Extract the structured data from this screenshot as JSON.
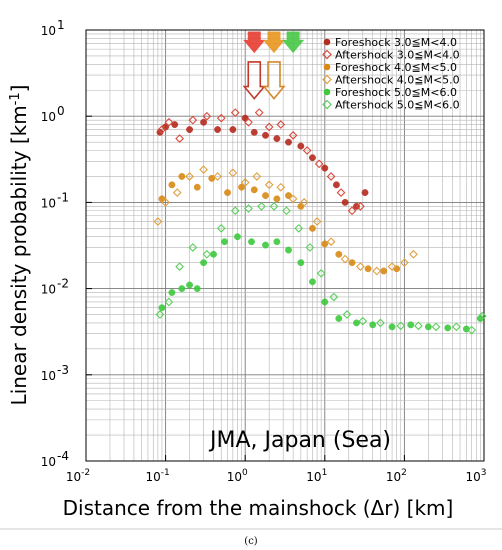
{
  "chart_data": {
    "type": "scatter",
    "xscale": "log",
    "yscale": "log",
    "xlim": [
      0.01,
      1000
    ],
    "ylim": [
      0.0001,
      10
    ],
    "grid": true,
    "legend_position": "top-right",
    "xlabel": "Distance from the mainshock (Δr) [km]",
    "ylabel": "Linear density probability [km",
    "ylabel_sup": "-1",
    "ylabel_end": "]",
    "annotation": "JMA, Japan (Sea)",
    "caption": "(c)",
    "x_tick_labels": [
      {
        "base": "10",
        "exp": "-2",
        "value": 0.01
      },
      {
        "base": "10",
        "exp": "-1",
        "value": 0.1
      },
      {
        "base": "10",
        "exp": "0",
        "value": 1
      },
      {
        "base": "10",
        "exp": "1",
        "value": 10
      },
      {
        "base": "10",
        "exp": "2",
        "value": 100
      },
      {
        "base": "10",
        "exp": "3",
        "value": 1000
      }
    ],
    "y_tick_labels": [
      {
        "base": "10",
        "exp": "-4",
        "value": 0.0001
      },
      {
        "base": "10",
        "exp": "-3",
        "value": 0.001
      },
      {
        "base": "10",
        "exp": "-2",
        "value": 0.01
      },
      {
        "base": "10",
        "exp": "-1",
        "value": 0.1
      },
      {
        "base": "10",
        "exp": "0",
        "value": 1
      },
      {
        "base": "10",
        "exp": "1",
        "value": 10
      }
    ],
    "series": [
      {
        "name": "Foreshock 3.0≦M<4.0",
        "marker": "filled-circle",
        "color": "#b52a1e",
        "points": [
          [
            0.085,
            0.65
          ],
          [
            0.1,
            0.75
          ],
          [
            0.13,
            0.8
          ],
          [
            0.2,
            0.7
          ],
          [
            0.3,
            0.85
          ],
          [
            0.45,
            0.7
          ],
          [
            0.7,
            0.7
          ],
          [
            1,
            0.95
          ],
          [
            1.3,
            0.65
          ],
          [
            1.8,
            0.6
          ],
          [
            2.5,
            0.55
          ],
          [
            3.5,
            0.5
          ],
          [
            5,
            0.45
          ],
          [
            7,
            0.33
          ],
          [
            10,
            0.25
          ],
          [
            14,
            0.16
          ],
          [
            18,
            0.1
          ],
          [
            25,
            0.09
          ],
          [
            32,
            0.13
          ]
        ]
      },
      {
        "name": "Aftershock 3.0≦M<4.0",
        "marker": "open-diamond",
        "color": "#d94a3c",
        "points": [
          [
            0.09,
            0.7
          ],
          [
            0.11,
            0.85
          ],
          [
            0.15,
            0.55
          ],
          [
            0.22,
            0.9
          ],
          [
            0.33,
            1.0
          ],
          [
            0.5,
            0.95
          ],
          [
            0.75,
            1.1
          ],
          [
            1.1,
            0.85
          ],
          [
            1.5,
            1.1
          ],
          [
            2,
            0.75
          ],
          [
            2.8,
            0.8
          ],
          [
            4,
            0.6
          ],
          [
            6,
            0.4
          ],
          [
            8.5,
            0.28
          ],
          [
            12,
            0.2
          ],
          [
            16,
            0.13
          ],
          [
            22,
            0.08
          ],
          [
            28,
            0.09
          ]
        ]
      },
      {
        "name": "Foreshock 4.0≦M<5.0",
        "marker": "filled-circle",
        "color": "#d98a15",
        "points": [
          [
            0.09,
            0.11
          ],
          [
            0.12,
            0.16
          ],
          [
            0.16,
            0.2
          ],
          [
            0.25,
            0.15
          ],
          [
            0.38,
            0.19
          ],
          [
            0.6,
            0.13
          ],
          [
            0.9,
            0.15
          ],
          [
            1.3,
            0.14
          ],
          [
            1.8,
            0.12
          ],
          [
            2.5,
            0.11
          ],
          [
            3.5,
            0.12
          ],
          [
            5,
            0.09
          ],
          [
            7,
            0.05
          ],
          [
            10,
            0.033
          ],
          [
            15,
            0.025
          ],
          [
            22,
            0.02
          ],
          [
            35,
            0.017
          ],
          [
            55,
            0.016
          ],
          [
            80,
            0.017
          ]
        ]
      },
      {
        "name": "Aftershock 4.0≦M<5.0",
        "marker": "open-diamond",
        "color": "#e0a040",
        "points": [
          [
            0.08,
            0.06
          ],
          [
            0.1,
            0.1
          ],
          [
            0.14,
            0.13
          ],
          [
            0.2,
            0.2
          ],
          [
            0.3,
            0.24
          ],
          [
            0.45,
            0.2
          ],
          [
            0.7,
            0.22
          ],
          [
            1,
            0.17
          ],
          [
            1.4,
            0.2
          ],
          [
            2,
            0.16
          ],
          [
            2.8,
            0.15
          ],
          [
            4,
            0.11
          ],
          [
            5.5,
            0.1
          ],
          [
            8,
            0.06
          ],
          [
            12,
            0.035
          ],
          [
            18,
            0.022
          ],
          [
            28,
            0.018
          ],
          [
            45,
            0.016
          ],
          [
            70,
            0.018
          ],
          [
            100,
            0.02
          ],
          [
            130,
            0.025
          ]
        ]
      },
      {
        "name": "Foreshock 5.0≦M<6.0",
        "marker": "filled-circle",
        "color": "#3ec93e",
        "points": [
          [
            0.09,
            0.006
          ],
          [
            0.12,
            0.009
          ],
          [
            0.16,
            0.01
          ],
          [
            0.2,
            0.011
          ],
          [
            0.25,
            0.01
          ],
          [
            0.3,
            0.02
          ],
          [
            0.4,
            0.025
          ],
          [
            0.55,
            0.035
          ],
          [
            0.8,
            0.04
          ],
          [
            1.2,
            0.035
          ],
          [
            1.8,
            0.032
          ],
          [
            2.5,
            0.035
          ],
          [
            3.5,
            0.028
          ],
          [
            5,
            0.02
          ],
          [
            7,
            0.012
          ],
          [
            10,
            0.007
          ],
          [
            15,
            0.0045
          ],
          [
            25,
            0.004
          ],
          [
            40,
            0.0038
          ],
          [
            70,
            0.0036
          ],
          [
            120,
            0.0038
          ],
          [
            200,
            0.0036
          ],
          [
            350,
            0.0035
          ],
          [
            600,
            0.0034
          ],
          [
            900,
            0.0045
          ]
        ]
      },
      {
        "name": "Aftershock 5.0≦M<6.0",
        "marker": "open-diamond",
        "color": "#5ad05a",
        "points": [
          [
            0.085,
            0.005
          ],
          [
            0.11,
            0.007
          ],
          [
            0.15,
            0.018
          ],
          [
            0.22,
            0.03
          ],
          [
            0.33,
            0.025
          ],
          [
            0.5,
            0.05
          ],
          [
            0.75,
            0.08
          ],
          [
            1.1,
            0.085
          ],
          [
            1.6,
            0.09
          ],
          [
            2.3,
            0.09
          ],
          [
            3.3,
            0.08
          ],
          [
            4.7,
            0.05
          ],
          [
            6.5,
            0.03
          ],
          [
            9,
            0.015
          ],
          [
            13,
            0.008
          ],
          [
            19,
            0.005
          ],
          [
            30,
            0.0042
          ],
          [
            50,
            0.004
          ],
          [
            90,
            0.0037
          ],
          [
            150,
            0.0037
          ],
          [
            250,
            0.0036
          ],
          [
            450,
            0.0036
          ],
          [
            700,
            0.0033
          ],
          [
            950,
            0.0048
          ]
        ]
      }
    ],
    "arrows": [
      {
        "kind": "filled",
        "color": "#e83c32",
        "x": 1.3,
        "y_top": 10,
        "y_bottom": 5.5
      },
      {
        "kind": "filled",
        "color": "#e8961e",
        "x": 2.3,
        "y_top": 10,
        "y_bottom": 5.5
      },
      {
        "kind": "filled",
        "color": "#46c846",
        "x": 4.0,
        "y_top": 10,
        "y_bottom": 5.5
      },
      {
        "kind": "hollow",
        "color": "#c0392b",
        "x": 1.3,
        "y_top": 4.5,
        "y_bottom": 1.6
      },
      {
        "kind": "hollow",
        "color": "#d4892a",
        "x": 2.3,
        "y_top": 4.5,
        "y_bottom": 1.6
      }
    ]
  }
}
